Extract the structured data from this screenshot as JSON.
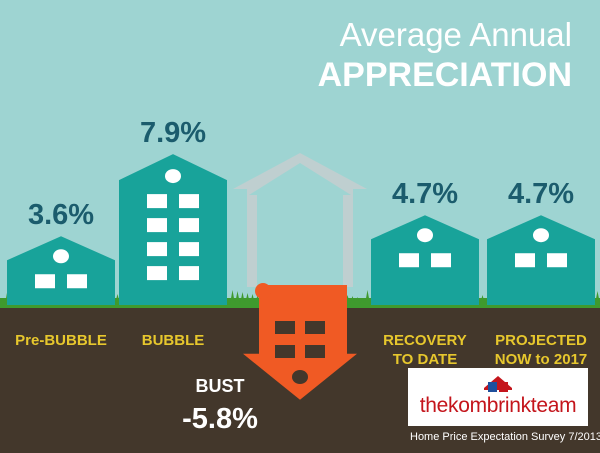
{
  "title": {
    "line1": "Average Annual",
    "line2": "APPRECIATION"
  },
  "chart_data": {
    "type": "bar",
    "categories": [
      {
        "label": [
          "Pre-BUBBLE"
        ]
      },
      {
        "label": [
          "BUBBLE"
        ]
      },
      {
        "label": [
          "BUST"
        ]
      },
      {
        "label": [
          "RECOVERY",
          "TO DATE"
        ]
      },
      {
        "label": [
          "PROJECTED",
          "NOW to 2017"
        ]
      }
    ],
    "values": [
      3.6,
      7.9,
      -5.8,
      4.7,
      4.7
    ],
    "value_labels": [
      "3.6%",
      "7.9%",
      "-5.8%",
      "4.7%",
      "4.7%"
    ],
    "ylim": [
      -6,
      8
    ]
  },
  "logo": {
    "text": "thekombrinkteam"
  },
  "footnote": "Home Price Expectation Survey 7/2013",
  "colors": {
    "sky": "#9ed4d2",
    "building": "#18a39a",
    "window": "#ffffff",
    "bust_outline": "#bfcfd0",
    "bust_fill": "#f05a24",
    "grass": "#3f9a2e",
    "ground": "#43372b",
    "value_text": "#1b5c6d",
    "label_text": "#e7c72d",
    "white": "#ffffff",
    "logo_red": "#c4151c",
    "logo_blue": "#1f4f9c"
  }
}
